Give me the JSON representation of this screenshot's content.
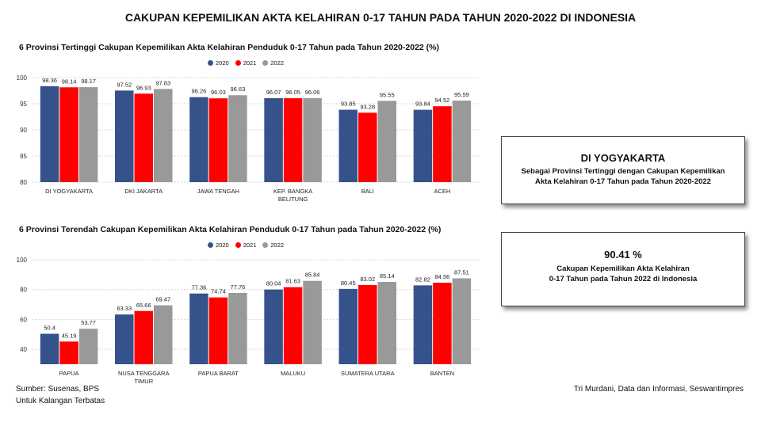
{
  "title": "CAKUPAN KEPEMILIKAN AKTA KELAHIRAN 0-17 TAHUN PADA TAHUN 2020-2022 DI INDONESIA",
  "colors": {
    "2020": "#36528a",
    "2021": "#ff0000",
    "2022": "#999999"
  },
  "chart_data": [
    {
      "type": "bar",
      "title": "6 Provinsi Tertinggi Cakupan Kepemilikan Akta Kelahiran Penduduk 0-17 Tahun pada Tahun 2020-2022 (%)",
      "categories": [
        "DI YOGYAKARTA",
        "DKI JAKARTA",
        "JAWA TENGAH",
        "KEP. BANGKA BELITUNG",
        "BALI",
        "ACEH"
      ],
      "series": [
        {
          "name": "2020",
          "values": [
            98.36,
            97.52,
            96.26,
            96.07,
            93.85,
            93.84
          ]
        },
        {
          "name": "2021",
          "values": [
            98.14,
            96.93,
            96.03,
            96.05,
            93.28,
            94.52
          ]
        },
        {
          "name": "2022",
          "values": [
            98.17,
            97.83,
            96.63,
            96.06,
            95.55,
            95.59
          ]
        }
      ],
      "yticks": [
        80,
        85,
        90,
        95,
        100
      ],
      "ylim": [
        80,
        100
      ]
    },
    {
      "type": "bar",
      "title": "6 Provinsi Terendah Cakupan Kepemilikan Akta Kelahiran Penduduk 0-17 Tahun pada Tahun 2020-2022 (%)",
      "categories": [
        "PAPUA",
        "NUSA TENGGARA TIMUR",
        "PAPUA BARAT",
        "MALUKU",
        "SUMATERA UTARA",
        "BANTEN"
      ],
      "series": [
        {
          "name": "2020",
          "values": [
            50.4,
            63.33,
            77.36,
            80.04,
            80.45,
            82.82
          ]
        },
        {
          "name": "2021",
          "values": [
            45.19,
            65.66,
            74.74,
            81.63,
            83.02,
            84.56
          ]
        },
        {
          "name": "2022",
          "values": [
            53.77,
            69.47,
            77.76,
            85.84,
            85.14,
            87.51
          ]
        }
      ],
      "yticks": [
        40,
        60,
        80,
        100
      ],
      "ylim": [
        30,
        100
      ]
    }
  ],
  "card1": {
    "title": "DI YOGYAKARTA",
    "line1": "Sebagai Provinsi Tertinggi dengan Cakupan Kepemilikan",
    "line2": "Akta Kelahiran 0-17 Tahun pada Tahun 2020-2022"
  },
  "card2": {
    "value": "90.41 %",
    "line1": "Cakupan Kepemilikan Akta Kelahiran",
    "line2": "0-17 Tahun pada Tahun 2022 di Indonesia"
  },
  "footer": {
    "source": "Sumber: Susenas, BPS",
    "note": "Untuk Kalangan Terbatas",
    "author": "Tri Murdani, Data dan Informasi, Seswantimpres"
  }
}
